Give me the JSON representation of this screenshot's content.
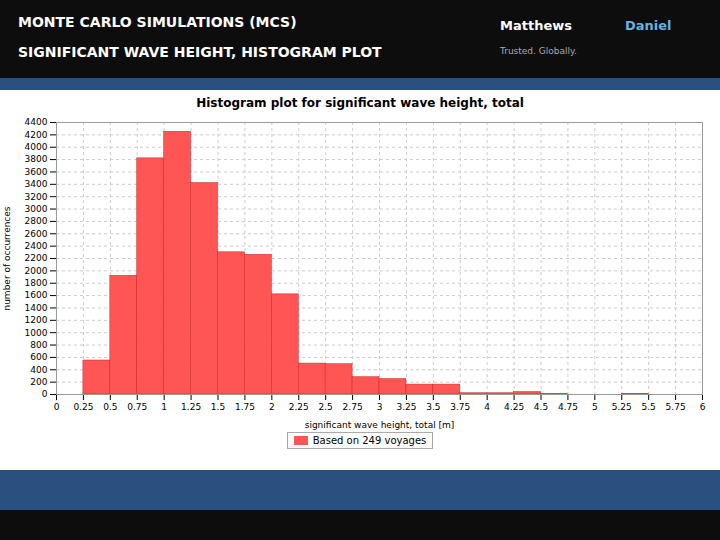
{
  "chart_data": {
    "type": "histogram",
    "title": "Histogram plot for significant wave height, total",
    "xlabel": "significant wave height, total [m]",
    "ylabel": "number of occurrences",
    "annotations": [
      "MONTE CARLO SIMULATIONS (MCS)",
      "SIGNIFICANT WAVE HEIGHT, HISTOGRAM PLOT",
      "Matthews",
      "Daniel",
      "Trusted. Globally."
    ],
    "bins": [
      0,
      0.25,
      0.5,
      0.75,
      1.0,
      1.25,
      1.5,
      1.75,
      2.0,
      2.25,
      2.5,
      2.75,
      3.0,
      3.25,
      3.5,
      3.75,
      4.0,
      4.25,
      4.5,
      4.75,
      5.0,
      5.25,
      5.5,
      5.75,
      6.0
    ],
    "series": [
      {
        "name": "Based on 249 voyages",
        "color": "#FF5555",
        "values": [
          0,
          550,
          1920,
          3820,
          4250,
          3420,
          2300,
          2260,
          1620,
          500,
          490,
          280,
          250,
          160,
          160,
          20,
          20,
          40,
          5,
          0,
          0,
          10,
          0,
          0
        ]
      }
    ],
    "xlim": [
      0,
      6.0
    ],
    "xticks": [
      0,
      0.25,
      0.5,
      0.75,
      1,
      1.25,
      1.5,
      1.75,
      2,
      2.25,
      2.5,
      2.75,
      3,
      3.25,
      3.5,
      3.75,
      4,
      4.25,
      4.5,
      4.75,
      5,
      5.25,
      5.5,
      5.75,
      6
    ],
    "ylim": [
      0,
      4400
    ],
    "yticks": [
      0,
      200,
      400,
      600,
      800,
      1000,
      1200,
      1400,
      1600,
      1800,
      2000,
      2200,
      2400,
      2600,
      2800,
      3000,
      3200,
      3400,
      3600,
      3800,
      4000,
      4200,
      4400
    ],
    "grid": true,
    "legend": "bottom"
  }
}
